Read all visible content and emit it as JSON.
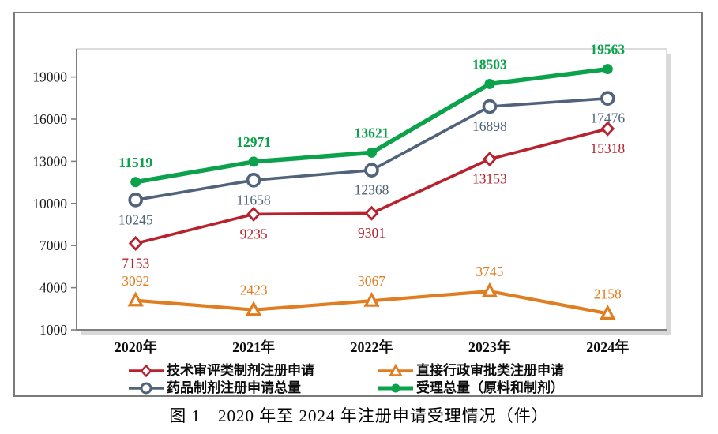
{
  "figure": {
    "caption": "图 1　2020 年至 2024 年注册申请受理情况（件）"
  },
  "chart_data": {
    "type": "line",
    "title": "图 1　2020 年至 2024 年注册申请受理情况（件）",
    "xlabel": "",
    "ylabel": "",
    "categories": [
      "2020年",
      "2021年",
      "2022年",
      "2023年",
      "2024年"
    ],
    "series": [
      {
        "name": "技术审评类制剂注册申请",
        "values": [
          7153,
          9235,
          9301,
          13153,
          15318
        ],
        "color": "#b7222e",
        "marker": "diamond-open",
        "line_width": 3.6,
        "label_position": "below",
        "label_bold": false
      },
      {
        "name": "直接行政审批类注册申请",
        "values": [
          3092,
          2423,
          3067,
          3745,
          2158
        ],
        "color": "#e07d20",
        "marker": "triangle-open",
        "line_width": 4.2,
        "label_position": "above",
        "label_bold": false
      },
      {
        "name": "药品制剂注册申请总量",
        "values": [
          10245,
          11658,
          12368,
          16898,
          17476
        ],
        "color": "#50637a",
        "marker": "circle-open",
        "line_width": 3.6,
        "label_position": "below",
        "label_bold": false
      },
      {
        "name": "受理总量（原料和制剂）",
        "values": [
          11519,
          12971,
          13621,
          18503,
          19563
        ],
        "color": "#0ca24c",
        "marker": "circle-filled",
        "line_width": 5.5,
        "label_position": "above",
        "label_bold": true
      }
    ],
    "y_ticks": [
      1000,
      4000,
      7000,
      10000,
      13000,
      16000,
      19000
    ],
    "ylim": [
      1000,
      21000
    ],
    "grid": false,
    "legend_position": "bottom",
    "data_labels": true
  }
}
